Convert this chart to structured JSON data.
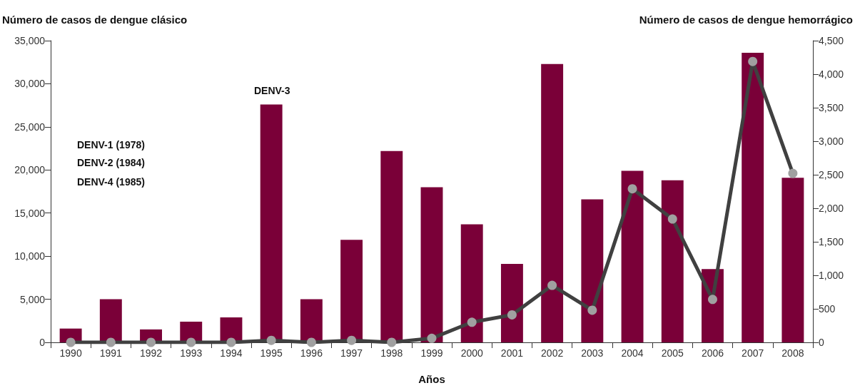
{
  "chart_data": {
    "type": "bar",
    "ylabel": "Número de casos de dengue clásico",
    "y2label": "Número de casos de dengue hemorrágico",
    "xlabel": "Años",
    "categories": [
      "1990",
      "1991",
      "1992",
      "1993",
      "1994",
      "1995",
      "1996",
      "1997",
      "1998",
      "1999",
      "2000",
      "2001",
      "2002",
      "2003",
      "2004",
      "2005",
      "2006",
      "2007",
      "2008"
    ],
    "series": [
      {
        "color": "#7a0038",
        "values": [
          1600,
          5000,
          1500,
          2400,
          2900,
          27600,
          5000,
          11900,
          22200,
          18000,
          13700,
          9100,
          32300,
          16600,
          19900,
          18800,
          8500,
          33600,
          19100
        ]
      },
      {
        "type": "line",
        "axis": "y2",
        "color": "#404040",
        "marker": "circle",
        "line_style": "solid",
        "values": [
          0,
          0,
          0,
          0,
          0,
          30,
          0,
          30,
          0,
          60,
          300,
          410,
          850,
          480,
          2290,
          1840,
          640,
          4190,
          2520
        ]
      }
    ],
    "ylim": [
      0,
      35000
    ],
    "yticks": [
      0,
      {
        "value": 5000,
        "label": "5,000"
      },
      {
        "value": 10000,
        "label": "10,000"
      },
      {
        "value": 15000,
        "label": "15,000"
      },
      {
        "value": 20000,
        "label": "20,000"
      },
      {
        "value": 25000,
        "label": "25,000"
      },
      {
        "value": 30000,
        "label": "30,000"
      },
      {
        "value": 35000,
        "label": "35,000"
      }
    ],
    "y2lim": [
      0,
      4500
    ],
    "y2ticks": [
      0,
      500,
      {
        "value": 1000,
        "label": "1,000"
      },
      {
        "value": 1500,
        "label": "1,500"
      },
      {
        "value": 2000,
        "label": "2,000"
      },
      {
        "value": 2500,
        "label": "2,500"
      },
      {
        "value": 3000,
        "label": "3,000"
      },
      {
        "value": 3500,
        "label": "3,500"
      },
      {
        "value": 4000,
        "label": "4,000"
      },
      {
        "value": 4500,
        "label": "4,500"
      }
    ],
    "grid": false,
    "annotations": [
      "DENV-1 (1978)",
      "DENV-2 (1984)",
      "DENV-4 (1985)",
      "DENV-3"
    ]
  }
}
